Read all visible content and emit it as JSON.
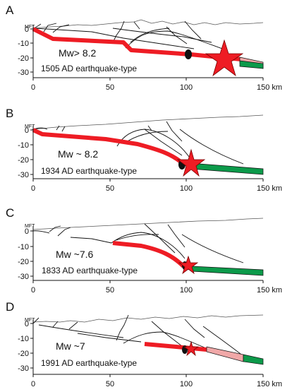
{
  "panels": [
    {
      "letter": "A",
      "magnitude": "Mw> 8.2",
      "event": "1505 AD earthquake-type",
      "y_ticks": [
        "0",
        "-10",
        "-20",
        "-30"
      ],
      "x_ticks": [
        "0",
        "50",
        "100",
        "150 km"
      ]
    },
    {
      "letter": "B",
      "magnitude": "Mw ~ 8.2",
      "event": "1934 AD earthquake-type",
      "y_ticks": [
        "0",
        "-10",
        "-20",
        "-30"
      ],
      "x_ticks": [
        "0",
        "50",
        "100",
        "150 km"
      ]
    },
    {
      "letter": "C",
      "magnitude": "Mw ~7.6",
      "event": "1833 AD earthquake-type",
      "y_ticks": [
        "0",
        "-10",
        "-20",
        "-30"
      ],
      "x_ticks": [
        "0",
        "50",
        "100",
        "150 km"
      ]
    },
    {
      "letter": "D",
      "magnitude": "Mw ~7",
      "event": "1991 AD earthquake-type",
      "y_ticks": [
        "0",
        "-10",
        "-20",
        "-30"
      ],
      "x_ticks": [
        "0",
        "50",
        "100",
        "150 km"
      ]
    }
  ],
  "fault_label": "MFT",
  "colors": {
    "rupture": "#ee1c24",
    "creep_zone": "#0c9a4a",
    "transition_zone": "#f0a8a8",
    "hypocenter_star": "#ee1c24",
    "aftershock_marker": "#111111"
  }
}
